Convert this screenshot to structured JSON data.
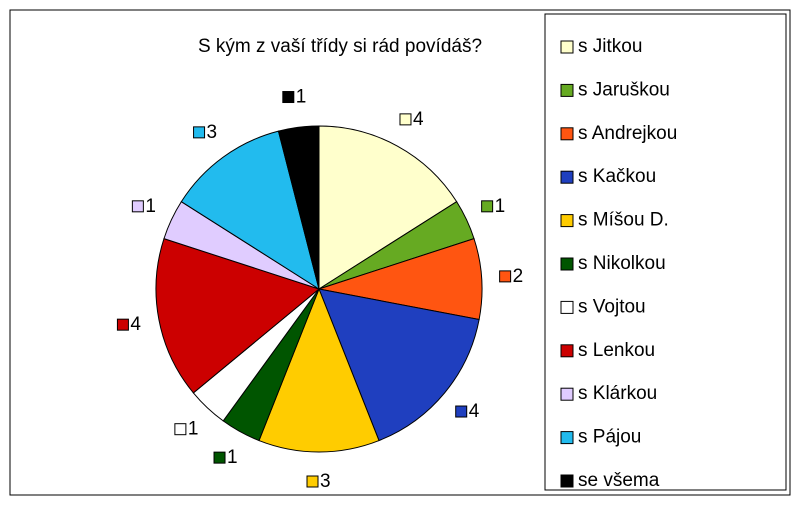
{
  "chart_data": {
    "type": "pie",
    "title": "S kým z vaší třídy si rád povídáš?",
    "categories": [
      "s Jitkou",
      "s Jaruškou",
      "s Andrejkou",
      "s Kačkou",
      "s Míšou D.",
      "s Nikolkou",
      "s Vojtou",
      "s Lenkou",
      "s Klárkou",
      "s Pájou",
      "se všema"
    ],
    "values": [
      4,
      1,
      2,
      4,
      3,
      1,
      1,
      4,
      1,
      3,
      1
    ],
    "colors": [
      "#FFFFCC",
      "#66AA22",
      "#FF5511",
      "#1F3FBF",
      "#FFCC00",
      "#005500",
      "#FFFFFF",
      "#CC0000",
      "#E0CCFF",
      "#22BBEE",
      "#000000"
    ],
    "legend": "right"
  }
}
